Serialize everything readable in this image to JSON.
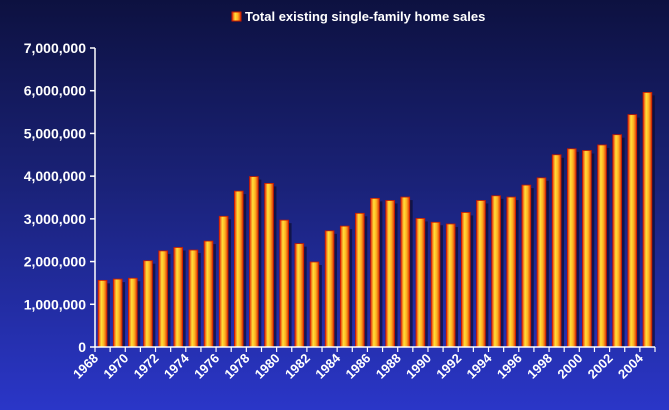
{
  "chart_data": {
    "type": "bar",
    "legend": "Total existing single-family home sales",
    "legend_position": "top-center",
    "categories": [
      "1968",
      "1969",
      "1970",
      "1971",
      "1972",
      "1973",
      "1974",
      "1975",
      "1976",
      "1977",
      "1978",
      "1979",
      "1980",
      "1981",
      "1982",
      "1983",
      "1984",
      "1985",
      "1986",
      "1987",
      "1988",
      "1989",
      "1990",
      "1991",
      "1992",
      "1993",
      "1994",
      "1995",
      "1996",
      "1997",
      "1998",
      "1999",
      "2000",
      "2001",
      "2002",
      "2003",
      "2004"
    ],
    "x_tick_labels": [
      "1968",
      "1970",
      "1972",
      "1974",
      "1976",
      "1978",
      "1980",
      "1982",
      "1984",
      "1986",
      "1988",
      "1990",
      "1992",
      "1994",
      "1996",
      "1998",
      "2000",
      "2002",
      "2004"
    ],
    "values": [
      1560000,
      1590000,
      1610000,
      2020000,
      2250000,
      2330000,
      2270000,
      2480000,
      3060000,
      3650000,
      3990000,
      3830000,
      2970000,
      2420000,
      1990000,
      2720000,
      2830000,
      3130000,
      3480000,
      3430000,
      3510000,
      3010000,
      2920000,
      2880000,
      3150000,
      3430000,
      3540000,
      3510000,
      3790000,
      3960000,
      4500000,
      4640000,
      4600000,
      4730000,
      4970000,
      5440000,
      5960000
    ],
    "y_ticks": [
      "0",
      "1,000,000",
      "2,000,000",
      "3,000,000",
      "4,000,000",
      "5,000,000",
      "6,000,000",
      "7,000,000"
    ],
    "ylim": [
      0,
      7000000
    ],
    "grid": false,
    "colors": {
      "bar_fill": "#ff8c00",
      "bar_highlight": "#ffdd33",
      "bar_edge": "#c81a00",
      "shadow": "#0a0a2a",
      "axis": "#ffffff",
      "text": "#ffffff"
    }
  }
}
